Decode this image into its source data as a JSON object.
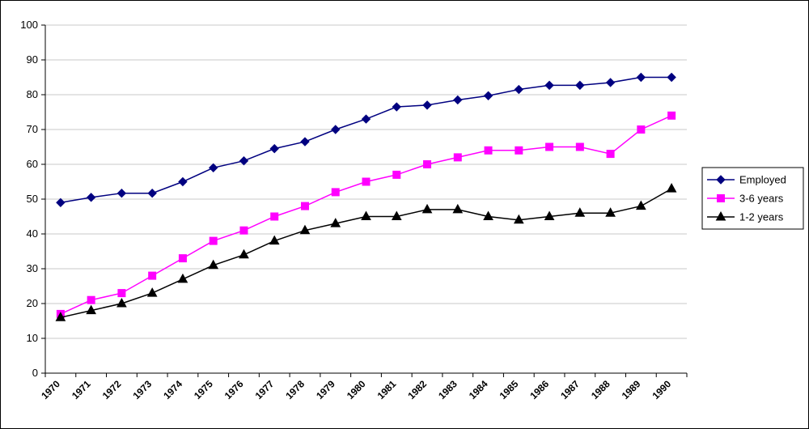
{
  "chart_data": {
    "type": "line",
    "title": "",
    "xlabel": "",
    "ylabel": "",
    "ylim": [
      0,
      100
    ],
    "y_ticks": [
      0,
      10,
      20,
      30,
      40,
      50,
      60,
      70,
      80,
      90,
      100
    ],
    "grid": "horizontal",
    "legend_position": "right",
    "categories": [
      "1970",
      "1971",
      "1972",
      "1973",
      "1974",
      "1975",
      "1976",
      "1977",
      "1978",
      "1979",
      "1980",
      "1981",
      "1982",
      "1983",
      "1984",
      "1985",
      "1986",
      "1987",
      "1988",
      "1989",
      "1990"
    ],
    "x_tick_labels": [
      "1970",
      "1971",
      "1972",
      "1973",
      "1974",
      "1975",
      "1976",
      "1977",
      "1978",
      "1979",
      "1980",
      "1981",
      "1982",
      "1983",
      "1984",
      "1985",
      "1986",
      "1987",
      "1988",
      "1989",
      "1990"
    ],
    "series": [
      {
        "name": "Employed",
        "color": "#000080",
        "marker": "diamond",
        "values": [
          49,
          50.5,
          51.7,
          51.7,
          55,
          59,
          61,
          64.5,
          66.5,
          70,
          73,
          76.5,
          77,
          78.5,
          79.7,
          81.5,
          82.7,
          82.7,
          83.5,
          85,
          85
        ]
      },
      {
        "name": "3-6 years",
        "color": "#ff00ff",
        "marker": "square",
        "values": [
          17,
          21,
          23,
          28,
          33,
          38,
          41,
          45,
          48,
          52,
          55,
          57,
          60,
          62,
          64,
          64,
          65,
          65,
          63,
          70,
          74
        ]
      },
      {
        "name": "1-2 years",
        "color": "#000000",
        "marker": "triangle",
        "values": [
          16,
          18,
          20,
          23,
          27,
          31,
          34,
          38,
          41,
          43,
          45,
          45,
          47,
          47,
          45,
          44,
          45,
          46,
          46,
          48,
          53
        ]
      }
    ]
  }
}
